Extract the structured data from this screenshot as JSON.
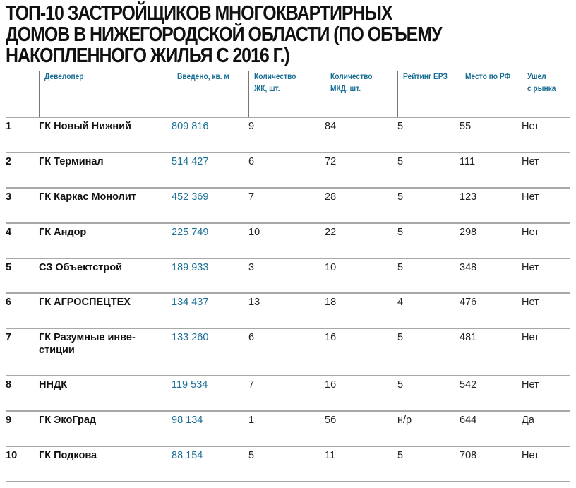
{
  "title": {
    "lines": [
      "ТОП-10 ЗАСТРОЙЩИКОВ МНОГОКВАРТИРНЫХ",
      "ДОМОВ В НИЖЕГОРОДСКОЙ ОБЛАСТИ (ПО ОБЪЕМУ",
      "НАКОПЛЕННОГО ЖИЛЬЯ С 2016 Г.)"
    ]
  },
  "colors": {
    "header_text": "#1a6e95",
    "volume_text": "#1a6e95",
    "row_line": "#a8a8a8",
    "divider": "#777777"
  },
  "table": {
    "headers": [
      {
        "line1": "",
        "line2": ""
      },
      {
        "line1": "Девелопер",
        "line2": ""
      },
      {
        "line1": "Введено, кв. м",
        "line2": ""
      },
      {
        "line1": "Количество",
        "line2": "ЖК, шт."
      },
      {
        "line1": "Количество",
        "line2": "МКД, шт."
      },
      {
        "line1": "Рейтинг ЕРЗ",
        "line2": ""
      },
      {
        "line1": "Место по РФ",
        "line2": ""
      },
      {
        "line1": "Ушел",
        "line2": "с рынка"
      }
    ],
    "rows": [
      {
        "rank": "1",
        "developer": "ГК Новый Нижний",
        "developer2": "",
        "volume": "809 816",
        "complexes": "9",
        "buildings": "84",
        "rating": "5",
        "rf_place": "55",
        "left_market": "Нет"
      },
      {
        "rank": "2",
        "developer": "ГК Терминал",
        "developer2": "",
        "volume": "514 427",
        "complexes": "6",
        "buildings": "72",
        "rating": "5",
        "rf_place": "111",
        "left_market": "Нет"
      },
      {
        "rank": "3",
        "developer": "ГК Каркас Монолит",
        "developer2": "",
        "volume": "452 369",
        "complexes": "7",
        "buildings": "28",
        "rating": "5",
        "rf_place": "123",
        "left_market": "Нет"
      },
      {
        "rank": "4",
        "developer": "ГК Андор",
        "developer2": "",
        "volume": "225 749",
        "complexes": "10",
        "buildings": "22",
        "rating": "5",
        "rf_place": "298",
        "left_market": "Нет"
      },
      {
        "rank": "5",
        "developer": "СЗ Объектстрой",
        "developer2": "",
        "volume": "189 933",
        "complexes": "3",
        "buildings": "10",
        "rating": "5",
        "rf_place": "348",
        "left_market": "Нет"
      },
      {
        "rank": "6",
        "developer": "ГК АГРОСПЕЦТЕХ",
        "developer2": "",
        "volume": "134 437",
        "complexes": "13",
        "buildings": "18",
        "rating": "4",
        "rf_place": "476",
        "left_market": "Нет"
      },
      {
        "rank": "7",
        "developer": "ГК Разумные инве-",
        "developer2": "стиции",
        "volume": "133 260",
        "complexes": "6",
        "buildings": "16",
        "rating": "5",
        "rf_place": "481",
        "left_market": "Нет"
      },
      {
        "rank": "8",
        "developer": "ННДК",
        "developer2": "",
        "volume": "119 534",
        "complexes": "7",
        "buildings": "16",
        "rating": "5",
        "rf_place": "542",
        "left_market": "Нет"
      },
      {
        "rank": "9",
        "developer": "ГК ЭкоГрад",
        "developer2": "",
        "volume": "98 134",
        "complexes": "1",
        "buildings": "56",
        "rating": "н/р",
        "rf_place": "644",
        "left_market": "Да"
      },
      {
        "rank": "10",
        "developer": "ГК Подкова",
        "developer2": "",
        "volume": "88 154",
        "complexes": "5",
        "buildings": "11",
        "rating": "5",
        "rf_place": "708",
        "left_market": "Нет"
      }
    ]
  }
}
